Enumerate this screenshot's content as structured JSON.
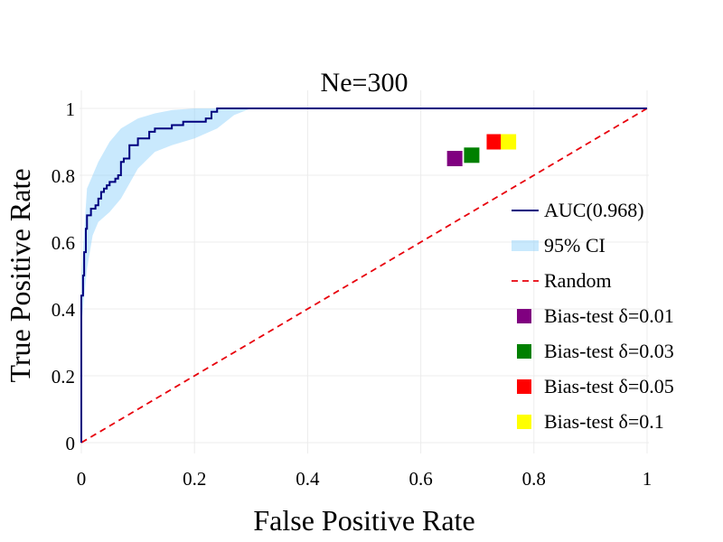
{
  "chart_data": {
    "type": "line",
    "title": "Ne=300",
    "xlabel": "False Positive Rate",
    "ylabel": "True Positive Rate",
    "xlim": [
      0,
      1
    ],
    "ylim": [
      0,
      1
    ],
    "grid": true,
    "legend_position": "right",
    "x_ticks": [
      "0",
      "0.2",
      "0.4",
      "0.6",
      "0.8",
      "1"
    ],
    "y_ticks": [
      "0",
      "0.2",
      "0.4",
      "0.6",
      "0.8",
      "1"
    ],
    "series": [
      {
        "name": "AUC(0.968)",
        "kind": "step-line",
        "color": "#00007f",
        "points": [
          [
            0,
            0
          ],
          [
            0,
            0.44
          ],
          [
            0.003,
            0.44
          ],
          [
            0.003,
            0.5
          ],
          [
            0.005,
            0.5
          ],
          [
            0.005,
            0.57
          ],
          [
            0.008,
            0.57
          ],
          [
            0.008,
            0.64
          ],
          [
            0.01,
            0.64
          ],
          [
            0.01,
            0.68
          ],
          [
            0.017,
            0.68
          ],
          [
            0.017,
            0.7
          ],
          [
            0.025,
            0.7
          ],
          [
            0.025,
            0.71
          ],
          [
            0.03,
            0.71
          ],
          [
            0.03,
            0.73
          ],
          [
            0.035,
            0.73
          ],
          [
            0.035,
            0.75
          ],
          [
            0.04,
            0.75
          ],
          [
            0.04,
            0.76
          ],
          [
            0.045,
            0.76
          ],
          [
            0.045,
            0.77
          ],
          [
            0.05,
            0.77
          ],
          [
            0.05,
            0.78
          ],
          [
            0.06,
            0.78
          ],
          [
            0.06,
            0.79
          ],
          [
            0.065,
            0.79
          ],
          [
            0.065,
            0.8
          ],
          [
            0.07,
            0.8
          ],
          [
            0.07,
            0.84
          ],
          [
            0.075,
            0.84
          ],
          [
            0.075,
            0.85
          ],
          [
            0.085,
            0.85
          ],
          [
            0.085,
            0.89
          ],
          [
            0.1,
            0.89
          ],
          [
            0.1,
            0.91
          ],
          [
            0.12,
            0.91
          ],
          [
            0.12,
            0.93
          ],
          [
            0.13,
            0.93
          ],
          [
            0.13,
            0.94
          ],
          [
            0.16,
            0.94
          ],
          [
            0.16,
            0.95
          ],
          [
            0.18,
            0.95
          ],
          [
            0.18,
            0.96
          ],
          [
            0.22,
            0.96
          ],
          [
            0.22,
            0.97
          ],
          [
            0.23,
            0.97
          ],
          [
            0.23,
            0.99
          ],
          [
            0.24,
            0.99
          ],
          [
            0.24,
            1.0
          ],
          [
            1.0,
            1.0
          ]
        ]
      },
      {
        "name": "95% CI",
        "kind": "band",
        "color": "#87cefa",
        "x": [
          0,
          0.01,
          0.02,
          0.03,
          0.05,
          0.07,
          0.1,
          0.13,
          0.16,
          0.2,
          0.24,
          0.27,
          0.3
        ],
        "lower": [
          0.35,
          0.52,
          0.62,
          0.66,
          0.69,
          0.73,
          0.82,
          0.87,
          0.89,
          0.91,
          0.94,
          0.98,
          1.0
        ],
        "upper": [
          0.5,
          0.76,
          0.8,
          0.84,
          0.9,
          0.94,
          0.97,
          0.985,
          0.995,
          1.0,
          1.0,
          1.0,
          1.0
        ]
      },
      {
        "name": "Random",
        "kind": "dashed-line",
        "color": "#e8000b",
        "points": [
          [
            0,
            0
          ],
          [
            1,
            1
          ]
        ]
      },
      {
        "name": "Bias-test δ=0.01",
        "kind": "marker",
        "color": "#800080",
        "points": [
          [
            0.66,
            0.85
          ]
        ]
      },
      {
        "name": "Bias-test δ=0.03",
        "kind": "marker",
        "color": "#008000",
        "points": [
          [
            0.69,
            0.86
          ]
        ]
      },
      {
        "name": "Bias-test δ=0.05",
        "kind": "marker",
        "color": "#ff0000",
        "points": [
          [
            0.73,
            0.9
          ]
        ]
      },
      {
        "name": "Bias-test δ=0.1",
        "kind": "marker",
        "color": "#ffff00",
        "points": [
          [
            0.755,
            0.9
          ]
        ]
      }
    ]
  }
}
